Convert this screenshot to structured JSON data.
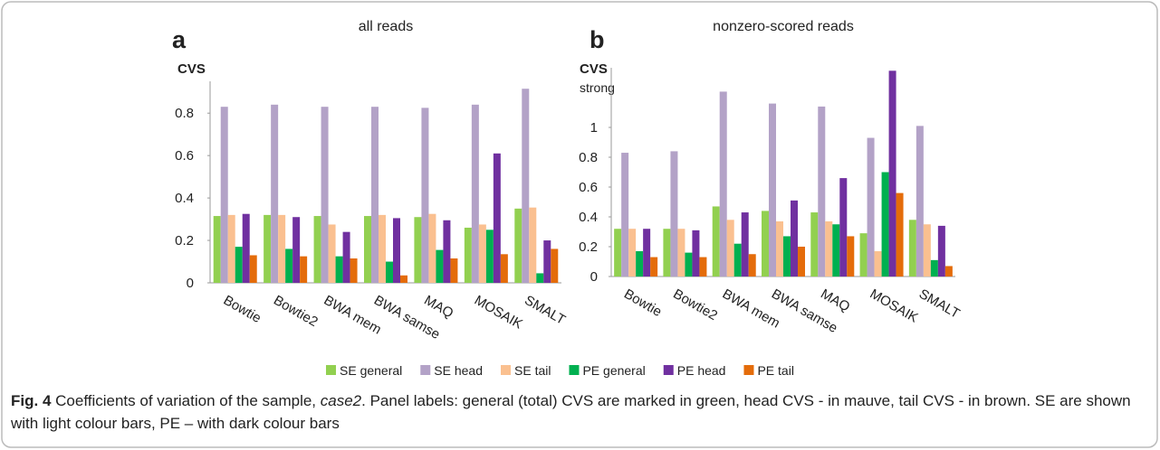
{
  "chart_data": [
    {
      "type": "bar",
      "panel_label": "a",
      "title": "all reads",
      "y_label": "CVS",
      "categories": [
        "Bowtie",
        "Bowtie2",
        "BWA mem",
        "BWA samse",
        "MAQ",
        "MOSAIK",
        "SMALT"
      ],
      "ylim": [
        0,
        0.95
      ],
      "yticks": [
        0,
        0.2,
        0.4,
        0.6,
        0.8
      ],
      "series": [
        {
          "name": "SE general",
          "color": "#92d050",
          "values": [
            0.315,
            0.32,
            0.315,
            0.315,
            0.31,
            0.26,
            0.35
          ]
        },
        {
          "name": "SE head",
          "color": "#b3a2c7",
          "values": [
            0.83,
            0.84,
            0.83,
            0.83,
            0.825,
            0.84,
            0.915
          ]
        },
        {
          "name": "SE tail",
          "color": "#fac090",
          "values": [
            0.32,
            0.32,
            0.275,
            0.32,
            0.325,
            0.275,
            0.355
          ]
        },
        {
          "name": "PE general",
          "color": "#00b050",
          "values": [
            0.17,
            0.16,
            0.125,
            0.1,
            0.155,
            0.25,
            0.045
          ]
        },
        {
          "name": "PE head",
          "color": "#7030a0",
          "values": [
            0.325,
            0.31,
            0.24,
            0.305,
            0.295,
            0.61,
            0.2
          ]
        },
        {
          "name": "PE tail",
          "color": "#e46c0a",
          "values": [
            0.13,
            0.125,
            0.115,
            0.035,
            0.115,
            0.135,
            0.16
          ]
        }
      ]
    },
    {
      "type": "bar",
      "panel_label": "b",
      "title": "nonzero-scored reads",
      "y_label": "CVS",
      "y_sublabel": "strong",
      "categories": [
        "Bowtie",
        "Bowtie2",
        "BWA mem",
        "BWA samse",
        "MAQ",
        "MOSAIK",
        "SMALT"
      ],
      "ylim": [
        0,
        1.4
      ],
      "yticks": [
        0,
        0.2,
        0.4,
        0.6,
        0.8,
        1
      ],
      "series": [
        {
          "values": [
            0.32,
            0.32,
            0.47,
            0.44,
            0.43,
            0.29,
            0.38
          ]
        },
        {
          "values": [
            0.83,
            0.84,
            1.24,
            1.16,
            1.14,
            0.93,
            1.01
          ]
        },
        {
          "values": [
            0.32,
            0.32,
            0.38,
            0.37,
            0.37,
            0.17,
            0.35
          ]
        },
        {
          "values": [
            0.17,
            0.16,
            0.22,
            0.27,
            0.35,
            0.7,
            0.11
          ]
        },
        {
          "values": [
            0.32,
            0.31,
            0.43,
            0.51,
            0.66,
            1.38,
            0.34
          ]
        },
        {
          "values": [
            0.13,
            0.13,
            0.15,
            0.2,
            0.27,
            0.56,
            0.07
          ]
        }
      ]
    }
  ],
  "caption": {
    "label": "Fig. 4",
    "text_before": " Coefficients of variation of the sample, ",
    "emphasis": "case2",
    "text_after": ". Panel labels: general (total) CVS are marked in green, head CVS - in mauve, tail CVS - in brown. SE are shown with light colour bars, PE – with dark colour bars"
  }
}
